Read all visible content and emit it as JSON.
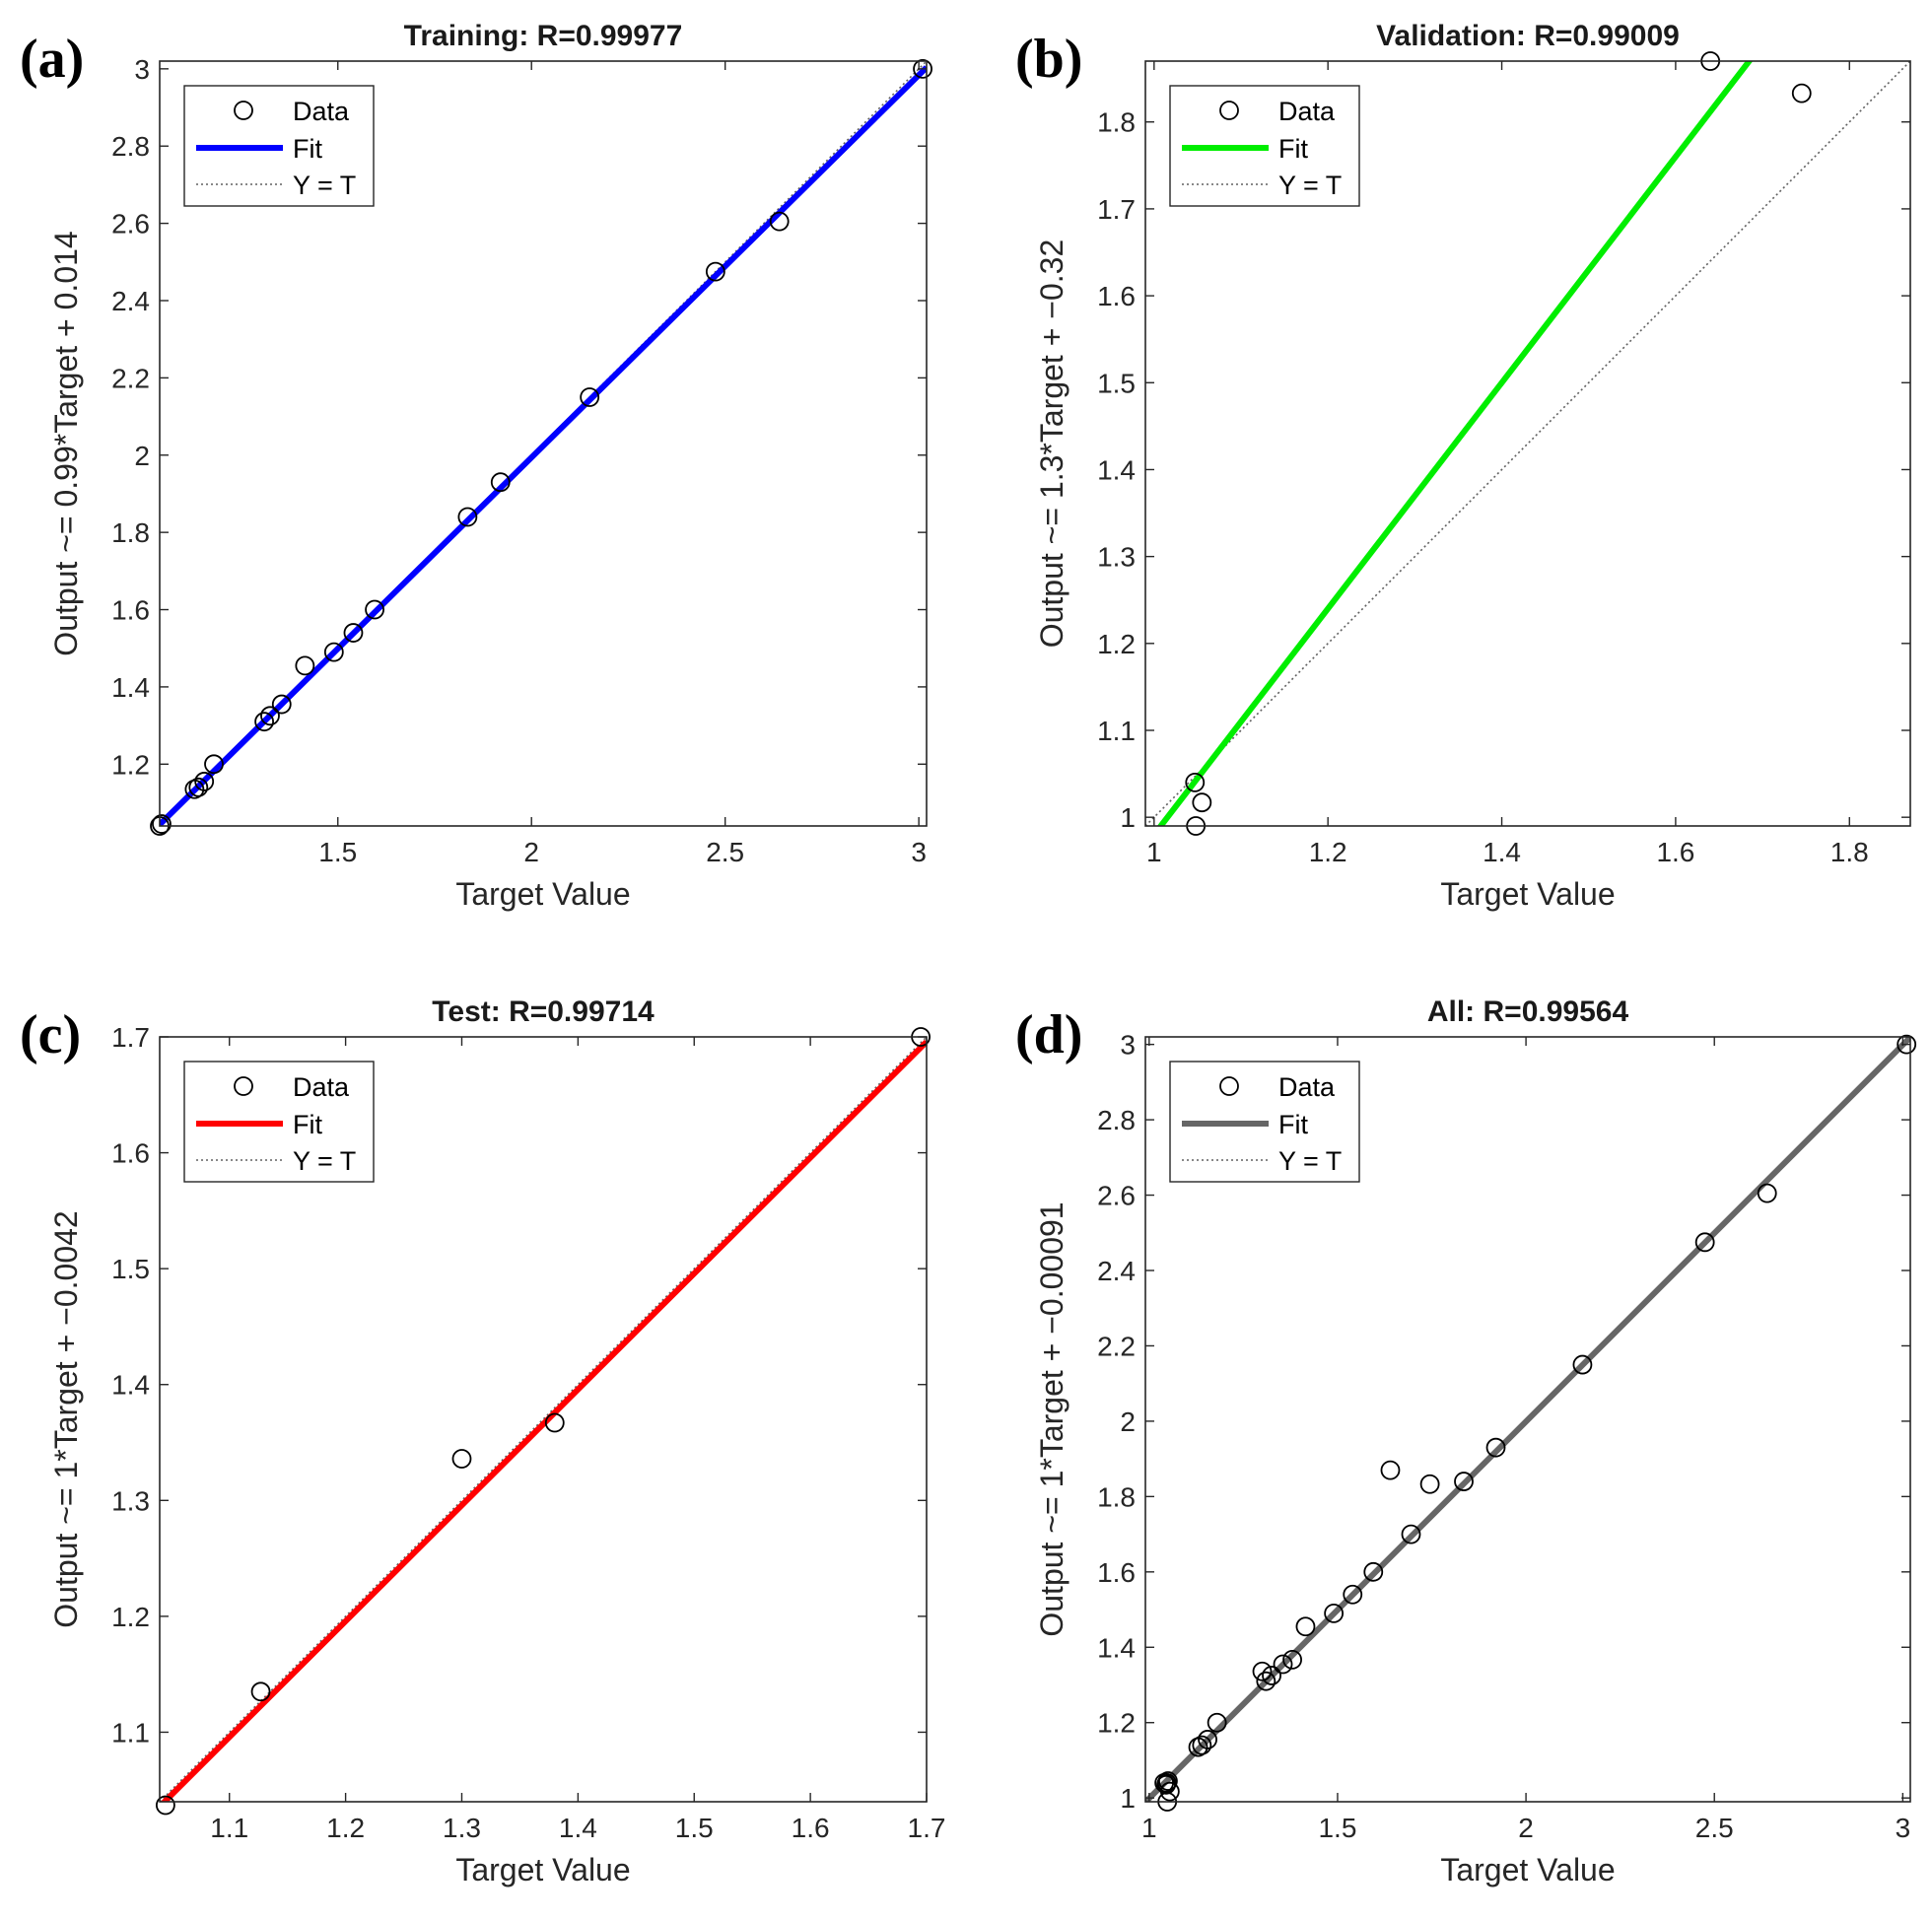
{
  "colors": {
    "training_fit": "#0000ff",
    "validation_fit": "#00ee00",
    "test_fit": "#ff0000",
    "all_fit": "#666666",
    "identity_line": "#606060",
    "marker": "#000000"
  },
  "legend": {
    "data": "Data",
    "fit": "Fit",
    "identity": "Y = T"
  },
  "chart_data": [
    {
      "panel_label": "(a)",
      "type": "scatter",
      "title": "Training: R=0.99977",
      "xlabel": "Target Value",
      "ylabel": "Output ~= 0.99*Target + 0.014",
      "xlim": [
        1.04,
        3.02
      ],
      "ylim": [
        1.04,
        3.02
      ],
      "xticks": [
        1.5,
        2,
        2.5,
        3
      ],
      "xtick_labels": [
        "1.5",
        "2",
        "2.5",
        "3"
      ],
      "yticks": [
        1.2,
        1.4,
        1.6,
        1.8,
        2,
        2.2,
        2.4,
        2.6,
        2.8,
        3
      ],
      "ytick_labels": [
        "1.2",
        "1.4",
        "1.6",
        "1.8",
        "2",
        "2.2",
        "2.4",
        "2.6",
        "2.8",
        "3"
      ],
      "fit": {
        "slope": 0.99,
        "intercept": 0.014
      },
      "legend_position": "top-left",
      "points": [
        [
          1.04,
          1.04
        ],
        [
          1.045,
          1.045
        ],
        [
          1.13,
          1.135
        ],
        [
          1.14,
          1.14
        ],
        [
          1.155,
          1.155
        ],
        [
          1.18,
          1.2
        ],
        [
          1.31,
          1.31
        ],
        [
          1.325,
          1.325
        ],
        [
          1.355,
          1.355
        ],
        [
          1.415,
          1.455
        ],
        [
          1.49,
          1.49
        ],
        [
          1.54,
          1.54
        ],
        [
          1.595,
          1.6
        ],
        [
          1.835,
          1.84
        ],
        [
          1.92,
          1.93
        ],
        [
          2.15,
          2.15
        ],
        [
          2.475,
          2.475
        ],
        [
          2.64,
          2.605
        ],
        [
          3.01,
          3.0
        ]
      ]
    },
    {
      "panel_label": "(b)",
      "type": "scatter",
      "title": "Validation: R=0.99009",
      "xlabel": "Target Value",
      "ylabel": "Output ~= 1.3*Target + −0.32",
      "xlim": [
        0.99,
        1.87
      ],
      "ylim": [
        0.99,
        1.87
      ],
      "xticks": [
        1,
        1.2,
        1.4,
        1.6,
        1.8
      ],
      "xtick_labels": [
        "1",
        "1.2",
        "1.4",
        "1.6",
        "1.8"
      ],
      "yticks": [
        1,
        1.1,
        1.2,
        1.3,
        1.4,
        1.5,
        1.6,
        1.7,
        1.8
      ],
      "ytick_labels": [
        "1",
        "1.1",
        "1.2",
        "1.3",
        "1.4",
        "1.5",
        "1.6",
        "1.7",
        "1.8"
      ],
      "fit": {
        "slope": 1.3,
        "intercept": -0.32
      },
      "legend_position": "top-left",
      "points": [
        [
          1.047,
          1.04
        ],
        [
          1.055,
          1.017
        ],
        [
          1.048,
          0.99
        ],
        [
          1.64,
          1.87
        ],
        [
          1.745,
          1.833
        ]
      ]
    },
    {
      "panel_label": "(c)",
      "type": "scatter",
      "title": "Test: R=0.99714",
      "xlabel": "Target Value",
      "ylabel": "Output ~= 1*Target + −0.0042",
      "xlim": [
        1.04,
        1.7
      ],
      "ylim": [
        1.04,
        1.7
      ],
      "xticks": [
        1.1,
        1.2,
        1.3,
        1.4,
        1.5,
        1.6,
        1.7
      ],
      "xtick_labels": [
        "1.1",
        "1.2",
        "1.3",
        "1.4",
        "1.5",
        "1.6",
        "1.7"
      ],
      "yticks": [
        1.1,
        1.2,
        1.3,
        1.4,
        1.5,
        1.6,
        1.7
      ],
      "ytick_labels": [
        "1.1",
        "1.2",
        "1.3",
        "1.4",
        "1.5",
        "1.6",
        "1.7"
      ],
      "fit": {
        "slope": 1.0,
        "intercept": -0.0042
      },
      "legend_position": "top-left",
      "points": [
        [
          1.045,
          1.037
        ],
        [
          1.127,
          1.135
        ],
        [
          1.3,
          1.336
        ],
        [
          1.38,
          1.367
        ],
        [
          1.695,
          1.7
        ]
      ]
    },
    {
      "panel_label": "(d)",
      "type": "scatter",
      "title": "All: R=0.99564",
      "xlabel": "Target Value",
      "ylabel": "Output ~= 1*Target + −0.00091",
      "xlim": [
        0.99,
        3.02
      ],
      "ylim": [
        0.99,
        3.02
      ],
      "xticks": [
        1,
        1.5,
        2,
        2.5,
        3
      ],
      "xtick_labels": [
        "1",
        "1.5",
        "2",
        "2.5",
        "3"
      ],
      "yticks": [
        1,
        1.2,
        1.4,
        1.6,
        1.8,
        2,
        2.2,
        2.4,
        2.6,
        2.8,
        3
      ],
      "ytick_labels": [
        "1",
        "1.2",
        "1.4",
        "1.6",
        "1.8",
        "2",
        "2.2",
        "2.4",
        "2.6",
        "2.8",
        "3"
      ],
      "fit": {
        "slope": 1.0,
        "intercept": -0.00091
      },
      "legend_position": "top-left",
      "points": [
        [
          1.04,
          1.04
        ],
        [
          1.045,
          1.035
        ],
        [
          1.047,
          1.04
        ],
        [
          1.05,
          1.045
        ],
        [
          1.055,
          1.017
        ],
        [
          1.048,
          0.99
        ],
        [
          1.13,
          1.135
        ],
        [
          1.14,
          1.14
        ],
        [
          1.155,
          1.155
        ],
        [
          1.18,
          1.2
        ],
        [
          1.3,
          1.336
        ],
        [
          1.31,
          1.31
        ],
        [
          1.325,
          1.325
        ],
        [
          1.355,
          1.355
        ],
        [
          1.38,
          1.367
        ],
        [
          1.415,
          1.455
        ],
        [
          1.49,
          1.49
        ],
        [
          1.54,
          1.54
        ],
        [
          1.595,
          1.6
        ],
        [
          1.64,
          1.87
        ],
        [
          1.695,
          1.7
        ],
        [
          1.745,
          1.833
        ],
        [
          1.835,
          1.84
        ],
        [
          1.92,
          1.93
        ],
        [
          2.15,
          2.15
        ],
        [
          2.475,
          2.475
        ],
        [
          2.64,
          2.605
        ],
        [
          3.01,
          3.0
        ]
      ]
    }
  ]
}
